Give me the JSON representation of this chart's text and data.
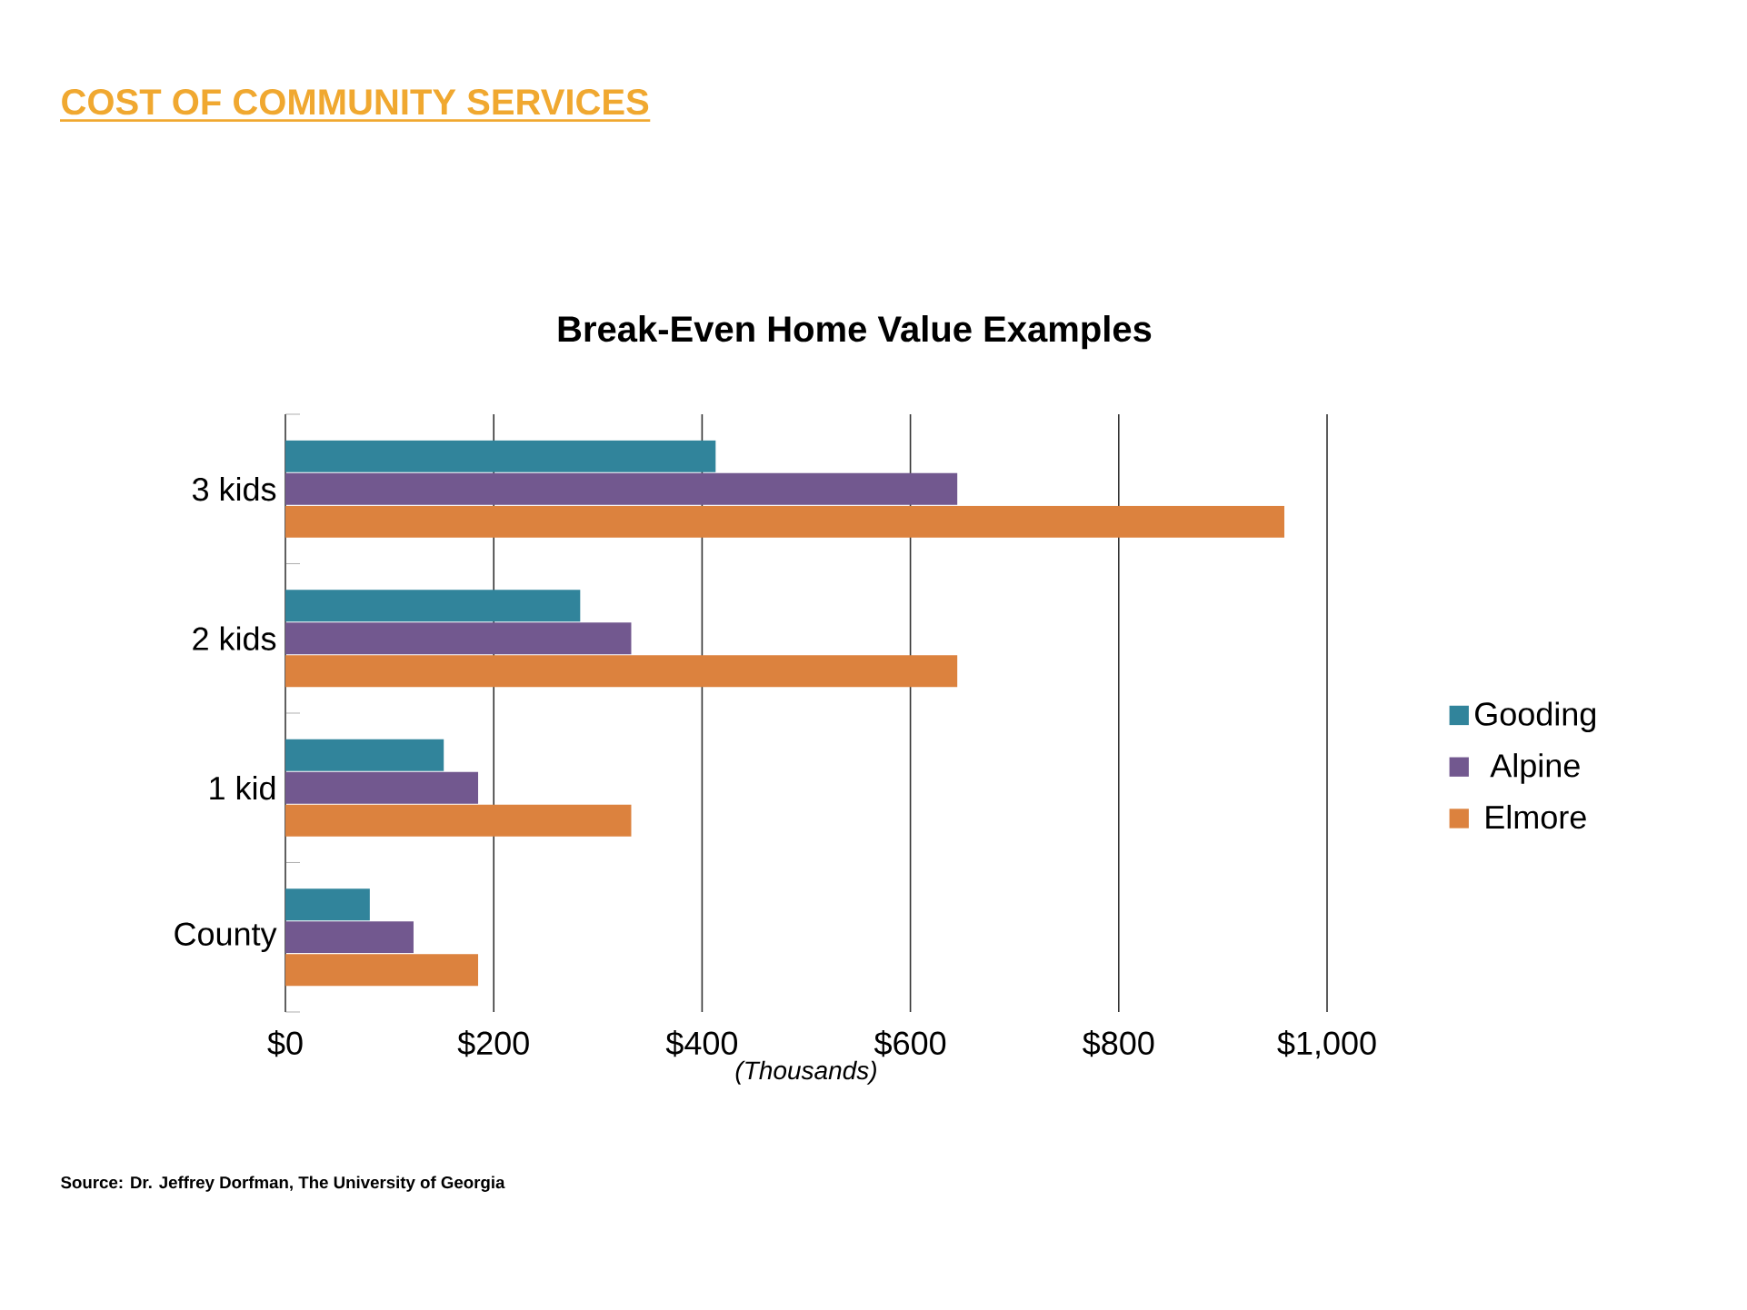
{
  "chart_data": {
    "type": "bar",
    "orientation": "horizontal",
    "title": "COST OF COMMUNITY SERVICES",
    "subtitle": "Break-Even Home Value Examples",
    "xlabel": "(Thousands)",
    "annotations": [
      "Source: Dr. Jeffrey Dorfman, The University of Georgia"
    ],
    "categories": [
      "3 kids",
      "2 kids",
      "1 kid",
      "County"
    ],
    "series": [
      {
        "name": "Gooding",
        "color": "#31849b",
        "values": [
          413,
          283,
          152,
          81
        ]
      },
      {
        "name": "Alpine",
        "color": "#72588f",
        "values": [
          645,
          332,
          185,
          123
        ]
      },
      {
        "name": "Elmore",
        "color": "#dc823e",
        "values": [
          959,
          645,
          332,
          185
        ]
      }
    ],
    "xlim": [
      0,
      1000
    ],
    "xticks": [
      {
        "value": 0,
        "label": "$0"
      },
      {
        "value": 200,
        "label": "$200"
      },
      {
        "value": 400,
        "label": "$400"
      },
      {
        "value": 600,
        "label": "$600"
      },
      {
        "value": 800,
        "label": "$800"
      },
      {
        "value": 1000,
        "label": "$1,000"
      }
    ],
    "grid": "x",
    "legend": "right"
  }
}
